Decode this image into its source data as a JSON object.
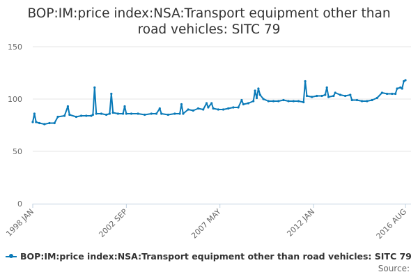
{
  "chart_data": {
    "type": "line",
    "title_lines": [
      "BOP:IM:price index:NSA:Transport equipment other than",
      "road vehicles: SITC 79"
    ],
    "xlabel": "",
    "ylabel": "",
    "ylim": [
      0,
      150
    ],
    "yticks": [
      0,
      50,
      100,
      150
    ],
    "xlim": [
      "1998-01",
      "2016-08"
    ],
    "xticks": [
      "1998 JAN",
      "2002 SEP",
      "2007 MAY",
      "2012 JAN",
      "2016 AUG"
    ],
    "x_tick_dates": [
      "1998-01",
      "2002-09",
      "2007-05",
      "2012-01",
      "2016-08"
    ],
    "grid": "horizontal",
    "legend_position": "bottom-left",
    "colors": {
      "series": "#0a7ab8",
      "grid": "#e6e6e6",
      "axis": "#c0d0e0"
    },
    "series": [
      {
        "name": "BOP:IM:price index:NSA:Transport equipment other than road vehicles: SITC 79",
        "points": [
          [
            "1998-01",
            78
          ],
          [
            "1998-02",
            86
          ],
          [
            "1998-03",
            78
          ],
          [
            "1998-05",
            77
          ],
          [
            "1998-08",
            76
          ],
          [
            "1998-11",
            77
          ],
          [
            "1999-02",
            77
          ],
          [
            "1999-04",
            83
          ],
          [
            "1999-08",
            84
          ],
          [
            "1999-10",
            93
          ],
          [
            "1999-11",
            85
          ],
          [
            "2000-03",
            83
          ],
          [
            "2000-06",
            84
          ],
          [
            "2000-09",
            84
          ],
          [
            "2000-12",
            84
          ],
          [
            "2001-01",
            85
          ],
          [
            "2001-02",
            111
          ],
          [
            "2001-03",
            86
          ],
          [
            "2001-06",
            86
          ],
          [
            "2001-09",
            85
          ],
          [
            "2001-11",
            86
          ],
          [
            "2001-12",
            105
          ],
          [
            "2002-01",
            87
          ],
          [
            "2002-04",
            86
          ],
          [
            "2002-07",
            86
          ],
          [
            "2002-08",
            93
          ],
          [
            "2002-09",
            86
          ],
          [
            "2002-12",
            86
          ],
          [
            "2003-04",
            86
          ],
          [
            "2003-08",
            85
          ],
          [
            "2003-12",
            86
          ],
          [
            "2004-03",
            86
          ],
          [
            "2004-05",
            91
          ],
          [
            "2004-06",
            86
          ],
          [
            "2004-10",
            85
          ],
          [
            "2005-02",
            86
          ],
          [
            "2005-05",
            86
          ],
          [
            "2005-06",
            95
          ],
          [
            "2005-07",
            86
          ],
          [
            "2005-10",
            90
          ],
          [
            "2006-01",
            89
          ],
          [
            "2006-04",
            91
          ],
          [
            "2006-07",
            90
          ],
          [
            "2006-09",
            96
          ],
          [
            "2006-10",
            92
          ],
          [
            "2006-12",
            96
          ],
          [
            "2007-01",
            91
          ],
          [
            "2007-04",
            90
          ],
          [
            "2007-07",
            90
          ],
          [
            "2007-10",
            91
          ],
          [
            "2008-01",
            92
          ],
          [
            "2008-04",
            92
          ],
          [
            "2008-06",
            99
          ],
          [
            "2008-07",
            95
          ],
          [
            "2008-10",
            96
          ],
          [
            "2009-01",
            98
          ],
          [
            "2009-02",
            108
          ],
          [
            "2009-03",
            101
          ],
          [
            "2009-04",
            110
          ],
          [
            "2009-05",
            104
          ],
          [
            "2009-07",
            100
          ],
          [
            "2009-10",
            98
          ],
          [
            "2010-01",
            98
          ],
          [
            "2010-04",
            98
          ],
          [
            "2010-07",
            99
          ],
          [
            "2010-10",
            98
          ],
          [
            "2011-01",
            98
          ],
          [
            "2011-04",
            98
          ],
          [
            "2011-07",
            97
          ],
          [
            "2011-08",
            117
          ],
          [
            "2011-09",
            103
          ],
          [
            "2011-12",
            102
          ],
          [
            "2012-03",
            103
          ],
          [
            "2012-06",
            103
          ],
          [
            "2012-08",
            104
          ],
          [
            "2012-09",
            111
          ],
          [
            "2012-10",
            102
          ],
          [
            "2013-01",
            103
          ],
          [
            "2013-02",
            106
          ],
          [
            "2013-05",
            104
          ],
          [
            "2013-08",
            103
          ],
          [
            "2013-11",
            104
          ],
          [
            "2013-12",
            99
          ],
          [
            "2014-03",
            99
          ],
          [
            "2014-06",
            98
          ],
          [
            "2014-09",
            98
          ],
          [
            "2014-12",
            99
          ],
          [
            "2015-03",
            101
          ],
          [
            "2015-06",
            106
          ],
          [
            "2015-09",
            105
          ],
          [
            "2015-12",
            105
          ],
          [
            "2016-02",
            105
          ],
          [
            "2016-03",
            110
          ],
          [
            "2016-05",
            111
          ],
          [
            "2016-06",
            110
          ],
          [
            "2016-07",
            117
          ],
          [
            "2016-08",
            118
          ]
        ]
      }
    ]
  },
  "legend": {
    "label": "BOP:IM:price index:NSA:Transport equipment other than road vehicles: SITC 79"
  },
  "source_label": "Source:"
}
